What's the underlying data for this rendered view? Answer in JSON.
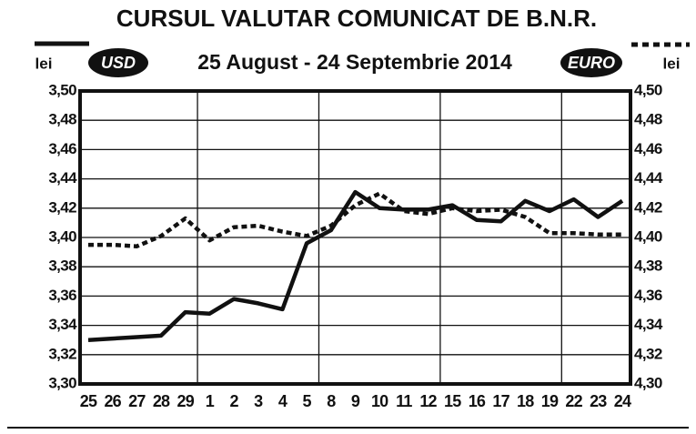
{
  "chart_data": {
    "type": "line",
    "title": "CURSUL VALUTAR COMUNICAT DE B.N.R.",
    "subtitle": "25 August - 24 Septembrie 2014",
    "ylabel": "lei",
    "y2label": "lei",
    "categories": [
      "25",
      "26",
      "27",
      "28",
      "29",
      "1",
      "2",
      "3",
      "4",
      "5",
      "8",
      "9",
      "10",
      "11",
      "12",
      "15",
      "16",
      "17",
      "18",
      "19",
      "22",
      "23",
      "24"
    ],
    "series": [
      {
        "name": "USD",
        "color": "#111111",
        "dash": "solid",
        "axis": "y",
        "values": [
          3.33,
          3.331,
          3.332,
          3.333,
          3.349,
          3.348,
          3.358,
          3.355,
          3.351,
          3.396,
          3.405,
          3.431,
          3.42,
          3.419,
          3.419,
          3.422,
          3.412,
          3.411,
          3.425,
          3.418,
          3.426,
          3.414,
          3.425
        ]
      },
      {
        "name": "EURO",
        "color": "#111111",
        "dash": "dotted",
        "axis": "y2",
        "values": [
          4.395,
          4.395,
          4.394,
          4.401,
          4.413,
          4.398,
          4.407,
          4.408,
          4.404,
          4.401,
          4.408,
          4.422,
          4.43,
          4.418,
          4.416,
          4.42,
          4.418,
          4.419,
          4.414,
          4.403,
          4.403,
          4.402,
          4.402
        ]
      }
    ],
    "ylim": [
      3.3,
      3.5
    ],
    "yticks": [
      {
        "value": 3.3,
        "label": "3,30"
      },
      {
        "value": 3.32,
        "label": "3,32"
      },
      {
        "value": 3.34,
        "label": "3,34"
      },
      {
        "value": 3.36,
        "label": "3,36"
      },
      {
        "value": 3.38,
        "label": "3,38"
      },
      {
        "value": 3.4,
        "label": "3,40"
      },
      {
        "value": 3.42,
        "label": "3,42"
      },
      {
        "value": 3.44,
        "label": "3,44"
      },
      {
        "value": 3.46,
        "label": "3,46"
      },
      {
        "value": 3.48,
        "label": "3,48"
      },
      {
        "value": 3.5,
        "label": "3,50"
      }
    ],
    "y2lim": [
      4.3,
      4.5
    ],
    "y2ticks": [
      {
        "value": 4.3,
        "label": "4,30"
      },
      {
        "value": 4.32,
        "label": "4,32"
      },
      {
        "value": 4.34,
        "label": "4,34"
      },
      {
        "value": 4.36,
        "label": "4,36"
      },
      {
        "value": 4.38,
        "label": "4,38"
      },
      {
        "value": 4.4,
        "label": "4,40"
      },
      {
        "value": 4.42,
        "label": "4,42"
      },
      {
        "value": 4.44,
        "label": "4,44"
      },
      {
        "value": 4.46,
        "label": "4,46"
      },
      {
        "value": 4.48,
        "label": "4,48"
      },
      {
        "value": 4.5,
        "label": "4,50"
      }
    ],
    "grid": true
  }
}
